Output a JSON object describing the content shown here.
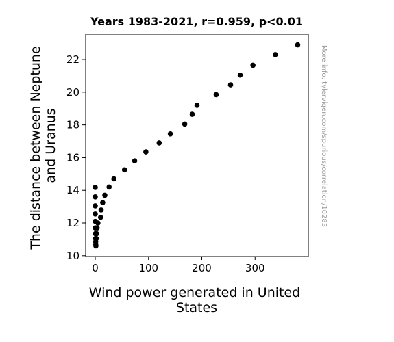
{
  "chart_data": {
    "type": "scatter",
    "title": "Years 1983-2021, r=0.959, p<0.01",
    "xlabel_lines": [
      "Wind power generated in United",
      "States"
    ],
    "ylabel_lines": [
      "The distance between Neptune",
      "and Uranus"
    ],
    "xlim": [
      -18,
      400
    ],
    "ylim": [
      9.95,
      23.55
    ],
    "xticks": [
      0,
      100,
      200,
      300
    ],
    "xtick_labels": [
      "0",
      "100",
      "200",
      "300"
    ],
    "yticks": [
      10,
      12,
      14,
      16,
      18,
      20,
      22
    ],
    "ytick_labels": [
      "10",
      "12",
      "14",
      "16",
      "18",
      "20",
      "22"
    ],
    "grid": false,
    "marker_color": "#000000",
    "points": [
      [
        0.0,
        14.18
      ],
      [
        0.0,
        13.6
      ],
      [
        0.0,
        13.05
      ],
      [
        0.0,
        12.55
      ],
      [
        0.0,
        12.1
      ],
      [
        0.1,
        11.7
      ],
      [
        0.4,
        11.35
      ],
      [
        0.6,
        11.05
      ],
      [
        0.8,
        10.85
      ],
      [
        1.0,
        10.7
      ],
      [
        1.2,
        10.6
      ],
      [
        2.0,
        11.05
      ],
      [
        2.5,
        11.35
      ],
      [
        3.5,
        11.7
      ],
      [
        5.0,
        12.0
      ],
      [
        10.0,
        12.35
      ],
      [
        11.0,
        12.8
      ],
      [
        14.0,
        13.25
      ],
      [
        18.0,
        13.7
      ],
      [
        26.0,
        14.2
      ],
      [
        35.0,
        14.7
      ],
      [
        55.0,
        15.25
      ],
      [
        74.0,
        15.8
      ],
      [
        95.0,
        16.35
      ],
      [
        120.0,
        16.9
      ],
      [
        141.0,
        17.45
      ],
      [
        168.0,
        18.05
      ],
      [
        182.0,
        18.65
      ],
      [
        191.0,
        19.2
      ],
      [
        227.0,
        19.85
      ],
      [
        254.0,
        20.45
      ],
      [
        272.0,
        21.05
      ],
      [
        296.0,
        21.65
      ],
      [
        338.0,
        22.3
      ],
      [
        380.0,
        22.9
      ]
    ],
    "watermark": "More info: tylervigen.com/spurious/correlation/10283"
  }
}
